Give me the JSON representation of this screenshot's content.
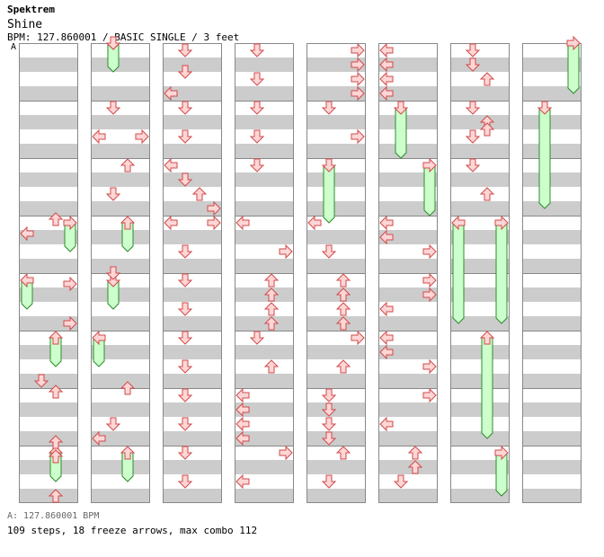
{
  "header": {
    "brand": "Spektrem",
    "song_title": "Shine",
    "meta_line": "BPM: 127.860001 / BASIC SINGLE / 3 feet",
    "marker_label": "A"
  },
  "footer": {
    "bpm_line": "A: 127.860001 BPM",
    "stats_line": "109 steps, 18 freeze arrows, max combo 112"
  },
  "colors": {
    "arrow_fill": "#ffd6d6",
    "arrow_stroke": "#d04a4a",
    "freeze_fill": "#ccffcc",
    "freeze_stroke": "#2e8b2e",
    "stripe": "#cccccc",
    "marker": "#6aa6e6"
  },
  "chart": {
    "lanes": [
      "left",
      "down",
      "up",
      "right"
    ],
    "measures_per_column": 8,
    "columns": [
      {
        "steps": [],
        "freezes": []
      },
      {
        "steps": [],
        "freezes": []
      },
      {
        "steps": [],
        "freezes": []
      },
      {
        "steps": [],
        "freezes": []
      },
      {
        "steps": [],
        "freezes": []
      },
      {
        "steps": [],
        "freezes": []
      },
      {
        "steps": [],
        "freezes": []
      },
      {
        "steps": [],
        "freezes": []
      }
    ]
  }
}
